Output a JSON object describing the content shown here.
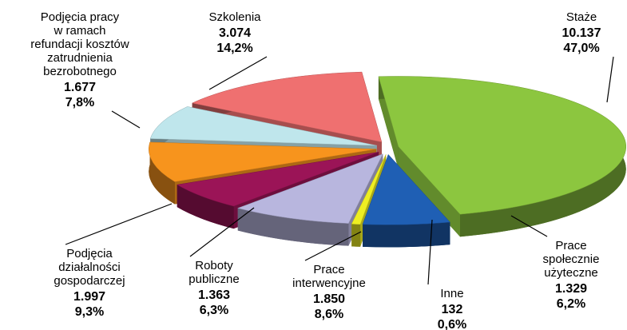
{
  "chart_data": {
    "type": "pie3d",
    "categories": [
      "Staże",
      "Prace\nspołecznie\nużyteczne",
      "Inne",
      "Prace\ninterwencyjne",
      "Roboty\npubliczne",
      "Podjęcia\ndziałalności\ngospodarczej",
      "Podjęcia pracy\nw ramach\nrefundacji kosztów\nzatrudnienia\nbezrobotnego",
      "Szkolenia"
    ],
    "values": [
      10137,
      1329,
      132,
      1850,
      1363,
      1997,
      1677,
      3074
    ],
    "value_labels": [
      "10.137",
      "1.329",
      "132",
      "1.850",
      "1.363",
      "1.997",
      "1.677",
      "3.074"
    ],
    "percentages": [
      47.0,
      6.2,
      0.6,
      8.6,
      6.3,
      9.3,
      7.8,
      14.2
    ],
    "percentage_labels": [
      "47,0%",
      "6,2%",
      "0,6%",
      "8,6%",
      "6,3%",
      "9,3%",
      "7,8%",
      "14,2%"
    ],
    "colors": [
      "#8cc63f",
      "#1f5fb4",
      "#eeee22",
      "#b8b6de",
      "#9b1457",
      "#f7941d",
      "#bfe6ec",
      "#ef7070"
    ]
  }
}
